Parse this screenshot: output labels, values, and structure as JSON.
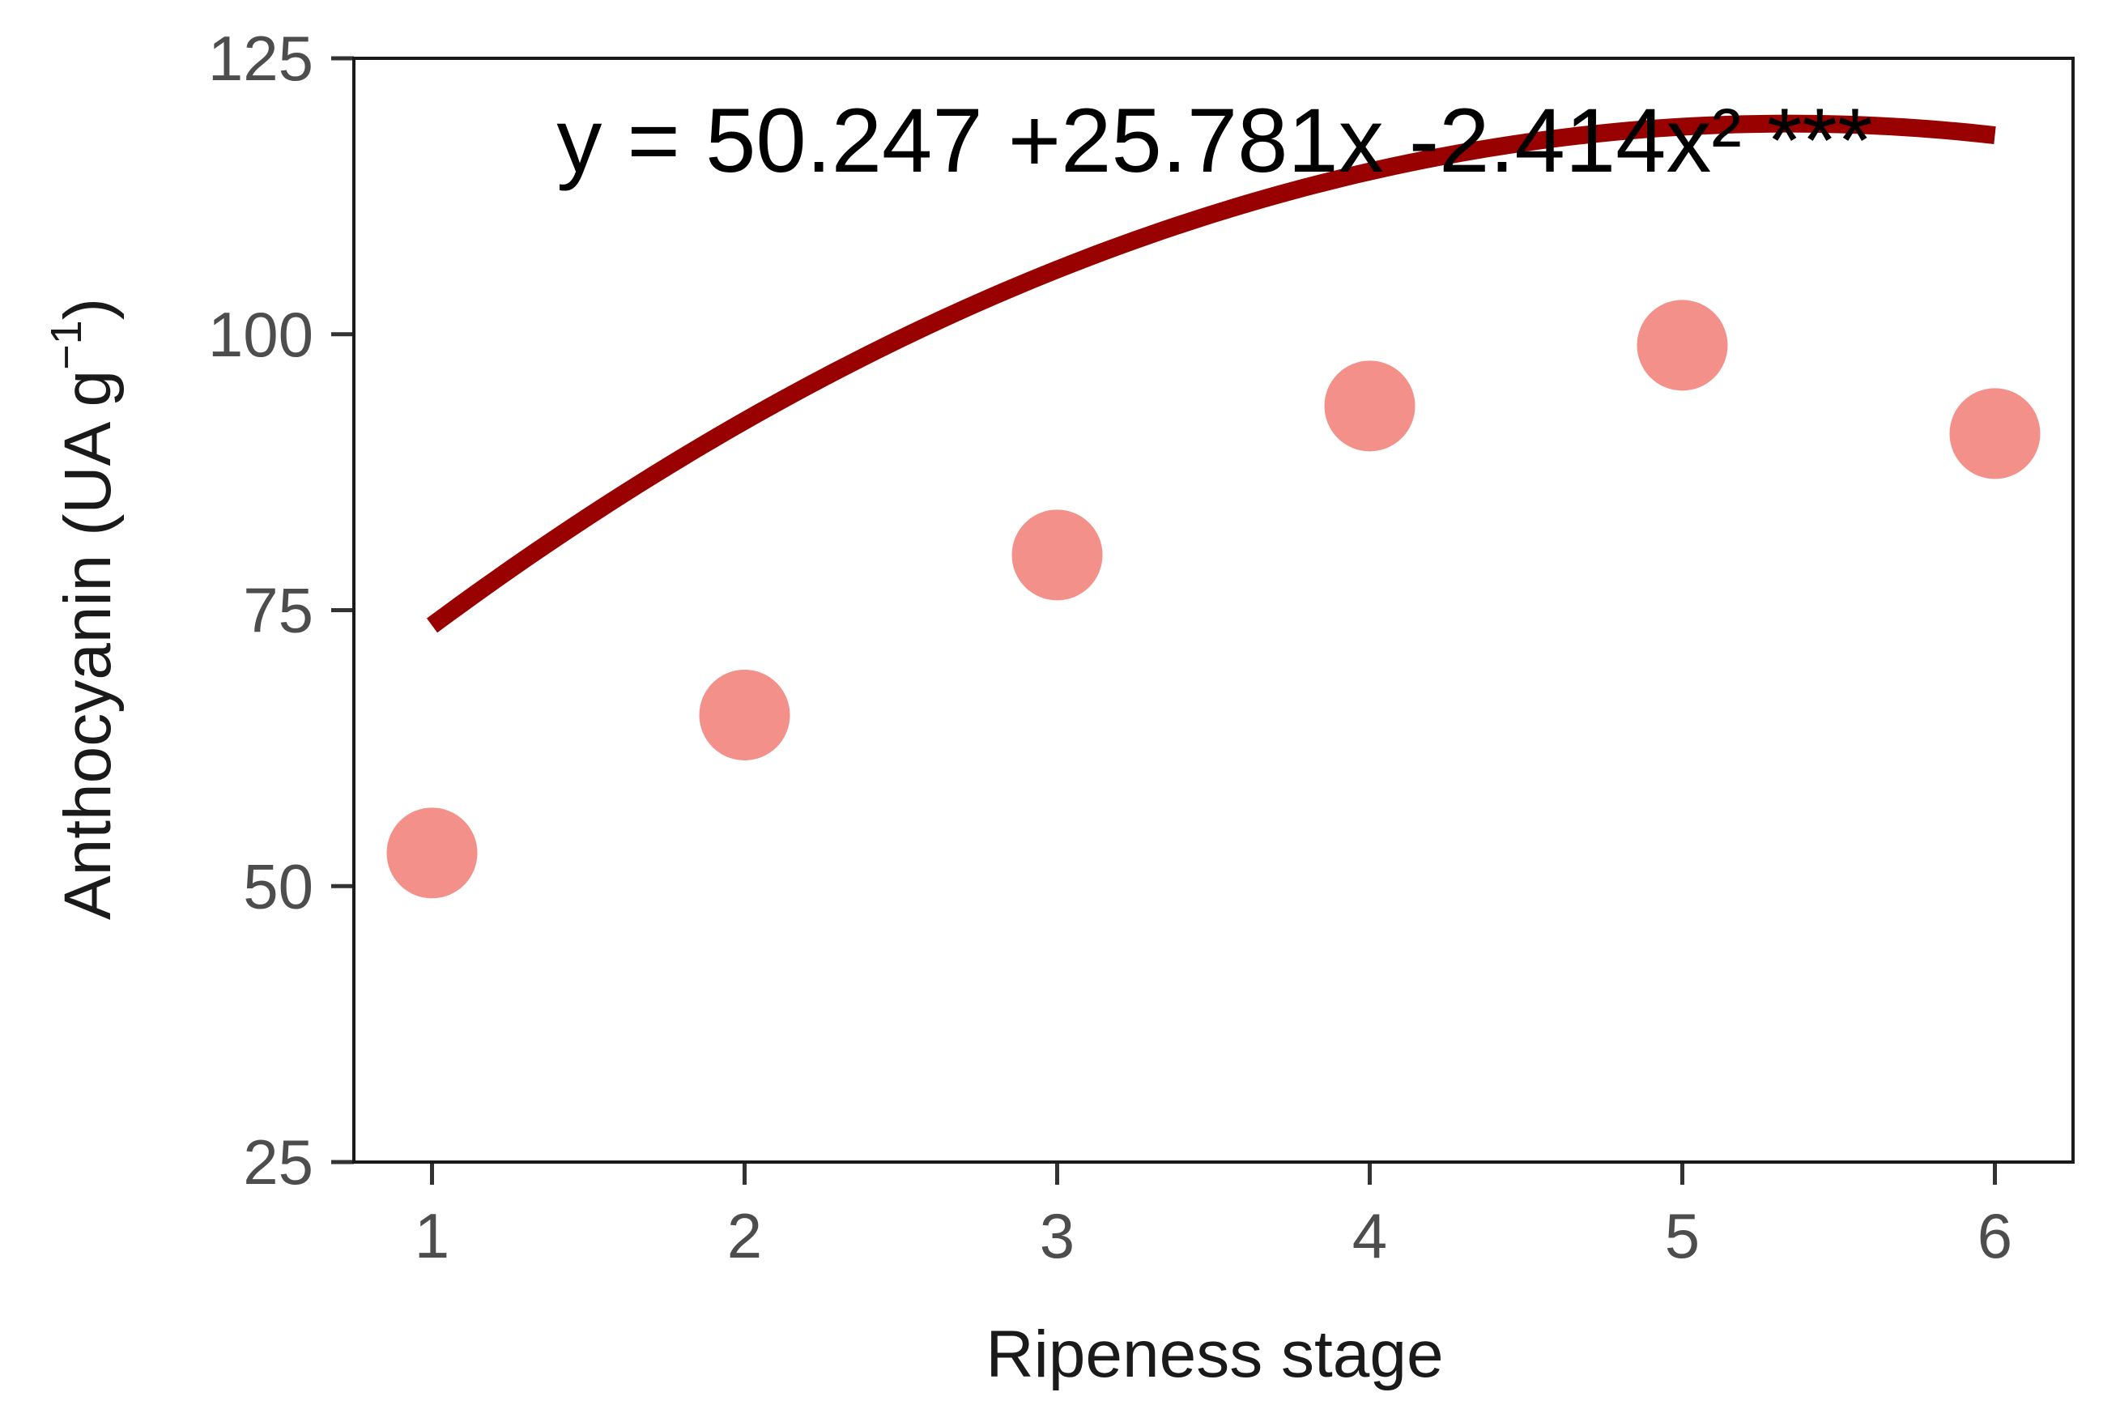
{
  "chart_data": {
    "type": "scatter",
    "xlabel": "Ripeness stage",
    "ylabel_main": "Anthocyanin (UA g",
    "ylabel_sup": "−1",
    "ylabel_close": ")",
    "annotation": "y = 50.247 +25.781x -2.414x² ***",
    "xlim": [
      0.75,
      6.25
    ],
    "ylim": [
      25,
      125
    ],
    "x_ticks": [
      "1",
      "2",
      "3",
      "4",
      "5",
      "6"
    ],
    "y_ticks": [
      "25",
      "50",
      "75",
      "100",
      "125"
    ],
    "points": {
      "x": [
        1,
        2,
        3,
        4,
        5,
        6
      ],
      "y": [
        53,
        65.5,
        80,
        93.5,
        99,
        91
      ],
      "color": "#f07c74"
    },
    "fit": {
      "type": "quadratic",
      "coefficients": [
        50.247,
        25.781,
        -2.414
      ],
      "x_range": [
        1,
        6
      ],
      "color": "#990000"
    },
    "grid": false,
    "legend": "none"
  }
}
